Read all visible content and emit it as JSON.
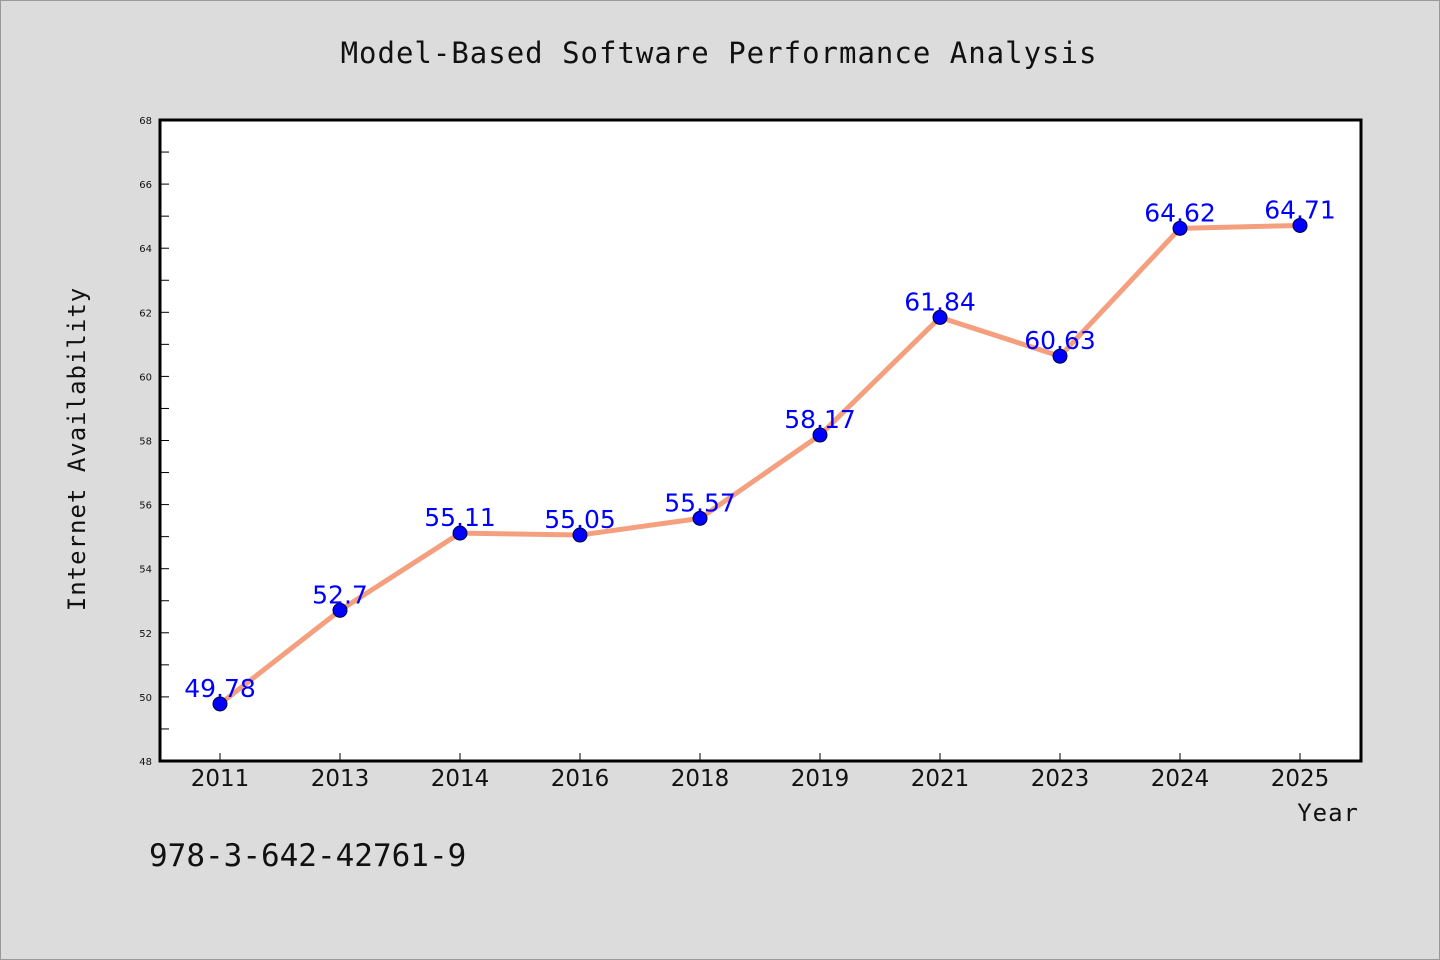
{
  "chart_data": {
    "type": "line",
    "title": "Model-Based Software Performance Analysis",
    "xlabel": "Year",
    "ylabel": "Internet Availability",
    "categories": [
      "2011",
      "2013",
      "2014",
      "2016",
      "2018",
      "2019",
      "2021",
      "2023",
      "2024",
      "2025"
    ],
    "series": [
      {
        "values": [
          49.78,
          52.7,
          55.11,
          55.05,
          55.57,
          58.17,
          61.84,
          60.63,
          64.62,
          64.71
        ],
        "labels": [
          "49.78",
          "52.7",
          "55.11",
          "55.05",
          "55.57",
          "58.17",
          "61.84",
          "60.63",
          "64.62",
          "64.71"
        ]
      }
    ],
    "ylim": [
      48,
      68
    ],
    "y_ticks": [
      "48",
      "50",
      "52",
      "54",
      "56",
      "58",
      "60",
      "62",
      "64",
      "66",
      "68"
    ],
    "grid": false,
    "legend": "none",
    "line_color": "#f4a07f",
    "marker_color": "#0000ff",
    "label_color": "#0000ff",
    "background_color": "#dcdcdc",
    "plot_background": "#ffffff"
  },
  "footnote": "978-3-642-42761-9"
}
